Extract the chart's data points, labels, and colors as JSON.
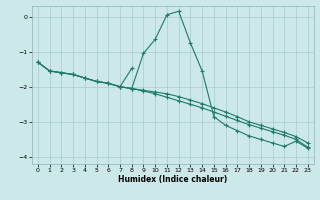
{
  "background_color": "#cce8e8",
  "grid_color": "#aacccc",
  "line_color": "#1e7a6a",
  "xlabel": "Humidex (Indice chaleur)",
  "ylim": [
    -4.2,
    0.3
  ],
  "xlim": [
    -0.5,
    23.5
  ],
  "yticks": [
    0,
    -1,
    -2,
    -3,
    -4
  ],
  "xticks": [
    0,
    1,
    2,
    3,
    4,
    5,
    6,
    7,
    8,
    9,
    10,
    11,
    12,
    13,
    14,
    15,
    16,
    17,
    18,
    19,
    20,
    21,
    22,
    23
  ],
  "series1_x": [
    0,
    1,
    2,
    3,
    4,
    5,
    6,
    7,
    8,
    9,
    10,
    11,
    12,
    13,
    14,
    15,
    16,
    17,
    18,
    19,
    20,
    21,
    22,
    23
  ],
  "series1_y": [
    -1.3,
    -1.55,
    -1.6,
    -1.65,
    -1.75,
    -1.85,
    -1.9,
    -2.0,
    -2.05,
    -1.05,
    -0.65,
    0.05,
    0.15,
    -0.75,
    -1.55,
    -2.85,
    -3.1,
    -3.25,
    -3.4,
    -3.5,
    -3.6,
    -3.7,
    -3.55,
    -3.75
  ],
  "series2_x": [
    0,
    1,
    2,
    3,
    4,
    5,
    6,
    7,
    8,
    9,
    10,
    11,
    12,
    13,
    14,
    15,
    16,
    17,
    18,
    19,
    20,
    21,
    22,
    23
  ],
  "series2_y": [
    -1.3,
    -1.55,
    -1.6,
    -1.65,
    -1.75,
    -1.85,
    -1.9,
    -2.0,
    -2.05,
    -2.1,
    -2.15,
    -2.2,
    -2.28,
    -2.38,
    -2.48,
    -2.6,
    -2.72,
    -2.85,
    -3.0,
    -3.1,
    -3.2,
    -3.3,
    -3.42,
    -3.6
  ],
  "series3_x": [
    0,
    1,
    2,
    3,
    4,
    5,
    6,
    7,
    8,
    9,
    10,
    11,
    12,
    13,
    14,
    15,
    16,
    17,
    18,
    19,
    20,
    21,
    22,
    23
  ],
  "series3_y": [
    -1.3,
    -1.55,
    -1.6,
    -1.65,
    -1.75,
    -1.85,
    -1.9,
    -2.0,
    -2.05,
    -2.12,
    -2.2,
    -2.3,
    -2.4,
    -2.5,
    -2.6,
    -2.72,
    -2.84,
    -2.96,
    -3.08,
    -3.18,
    -3.28,
    -3.38,
    -3.5,
    -3.72
  ],
  "series4_x": [
    7,
    8
  ],
  "series4_y": [
    -2.0,
    -1.48
  ]
}
